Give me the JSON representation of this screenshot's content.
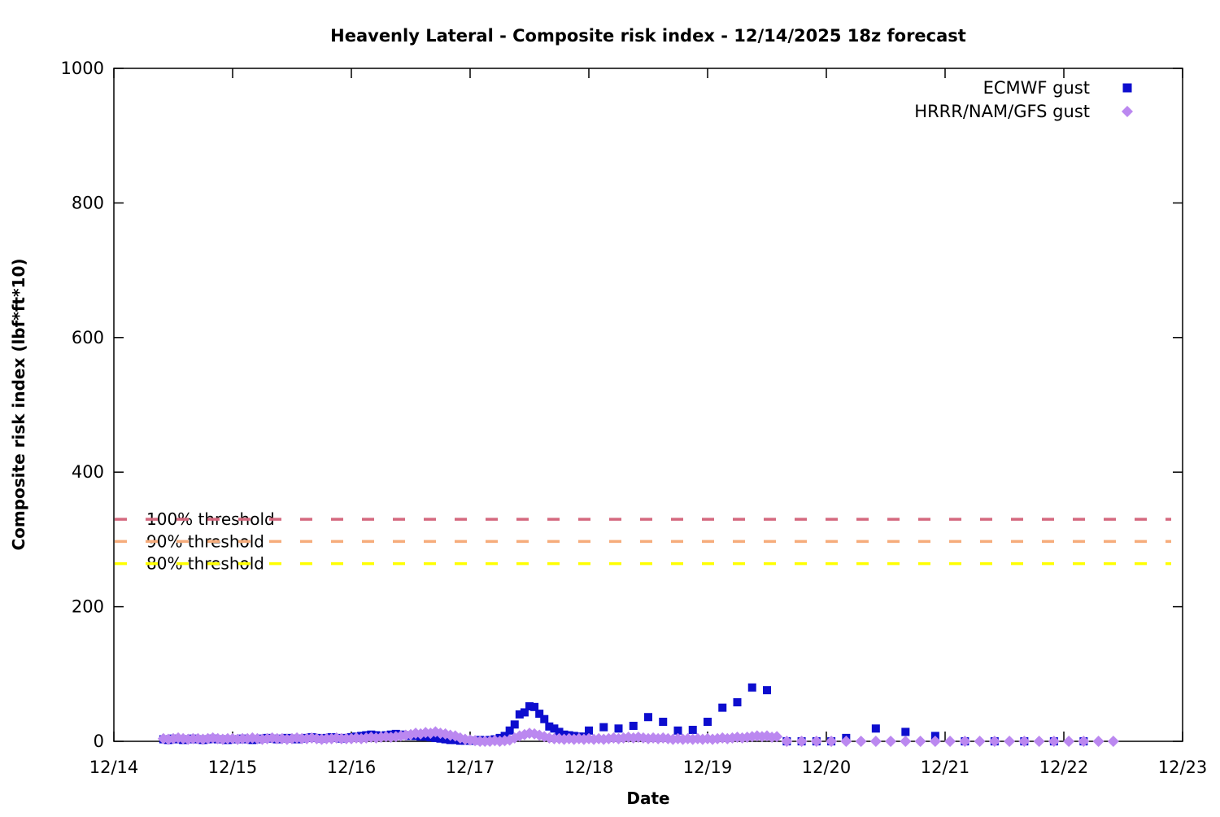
{
  "chart_data": {
    "type": "scatter",
    "title": "Heavenly Lateral - Composite risk index - 12/14/2025 18z forecast",
    "xlabel": "Date",
    "ylabel": "Composite risk index (lbf*ft*10)",
    "grid": false,
    "legend_position": "top-right-inside",
    "x_axis": {
      "unit": "days since 12/14 00:00",
      "min": 0,
      "max": 9,
      "tick_values": [
        0,
        1,
        2,
        3,
        4,
        5,
        6,
        7,
        8,
        9
      ],
      "tick_labels": [
        "12/14",
        "12/15",
        "12/16",
        "12/17",
        "12/18",
        "12/19",
        "12/20",
        "12/21",
        "12/22",
        "12/23"
      ]
    },
    "y_axis": {
      "min": 0,
      "max": 1000,
      "tick_values": [
        0,
        200,
        400,
        600,
        800,
        1000
      ],
      "tick_labels": [
        "0",
        "200",
        "400",
        "600",
        "800",
        "1000"
      ]
    },
    "thresholds": [
      {
        "label": "100% threshold",
        "value": 330,
        "color": "#d4687e",
        "style": "dashed"
      },
      {
        "label": "90% threshold",
        "value": 297,
        "color": "#f6ac7b",
        "style": "dashed"
      },
      {
        "label": "80% threshold",
        "value": 264,
        "color": "#ffff00",
        "style": "dashed"
      }
    ],
    "series": [
      {
        "name": "ECMWF gust",
        "marker": "square",
        "color": "#0d0dce",
        "size": 10,
        "segments": [
          {
            "start_day": 0.4167,
            "step_day": 0.0416667,
            "values": [
              3,
              2,
              4,
              3,
              2,
              3,
              4,
              3,
              2,
              3,
              4,
              3,
              3,
              2,
              3,
              3,
              4,
              3,
              2,
              3,
              4,
              5,
              4,
              3,
              4,
              5,
              4,
              3,
              4,
              5,
              6,
              5,
              4,
              5,
              6,
              5,
              4,
              5,
              6,
              7,
              8,
              9,
              10,
              9,
              8,
              9,
              10,
              11,
              10,
              9,
              8,
              8,
              7,
              7,
              6,
              5,
              4,
              3,
              2,
              2,
              1,
              1,
              1,
              1,
              2,
              1,
              2,
              3,
              5,
              8,
              16,
              25,
              40,
              43,
              52,
              51,
              41,
              33,
              22,
              19,
              14,
              10,
              9,
              8,
              7,
              7
            ]
          },
          {
            "start_day": 4.0,
            "step_day": 0.125,
            "values": [
              16,
              21,
              19,
              23,
              36,
              29,
              16,
              17,
              29,
              50,
              58,
              80,
              76
            ]
          },
          {
            "start_day": 5.6667,
            "step_day": 0.125,
            "values": [
              0,
              0,
              0,
              0
            ]
          },
          {
            "start_day": 6.1667,
            "step_day": 0.25,
            "values": [
              5,
              19,
              14,
              8,
              0,
              0,
              0,
              0,
              0
            ]
          }
        ]
      },
      {
        "name": "HRRR/NAM/GFS gust",
        "marker": "diamond",
        "color": "#bb88f0",
        "size": 14,
        "segments": [
          {
            "start_day": 0.4167,
            "step_day": 0.0416667,
            "values": [
              4,
              3,
              4,
              5,
              4,
              3,
              4,
              4,
              3,
              4,
              5,
              4,
              3,
              4,
              4,
              3,
              4,
              4,
              5,
              4,
              3,
              4,
              5,
              4,
              4,
              3,
              4,
              5,
              4,
              4,
              5,
              4,
              3,
              4,
              4,
              5,
              4,
              4,
              4,
              5,
              4,
              5,
              6,
              5,
              6,
              7,
              6,
              7,
              8,
              9,
              10,
              12,
              11,
              13,
              12,
              14,
              12,
              11,
              9,
              8,
              5,
              3,
              2,
              1,
              0,
              0,
              0,
              1,
              0,
              1,
              2,
              5,
              8,
              10,
              12,
              11,
              9,
              7,
              5,
              4,
              4,
              3,
              4,
              3,
              4,
              3,
              4,
              3,
              4,
              3,
              4,
              5,
              4,
              5,
              6,
              5,
              6,
              5,
              4,
              5,
              4,
              5,
              4,
              3,
              4,
              3,
              4,
              3,
              4,
              3,
              4,
              3,
              4,
              5,
              4,
              5,
              6,
              5,
              6,
              7,
              8,
              7,
              8,
              6,
              7
            ]
          },
          {
            "start_day": 5.6667,
            "step_day": 0.125,
            "values": [
              0,
              0,
              0,
              0,
              0,
              0,
              0,
              0,
              0,
              0,
              0,
              0,
              0,
              0,
              0,
              0,
              0,
              0,
              0,
              0,
              0,
              0,
              0
            ]
          }
        ]
      }
    ]
  }
}
